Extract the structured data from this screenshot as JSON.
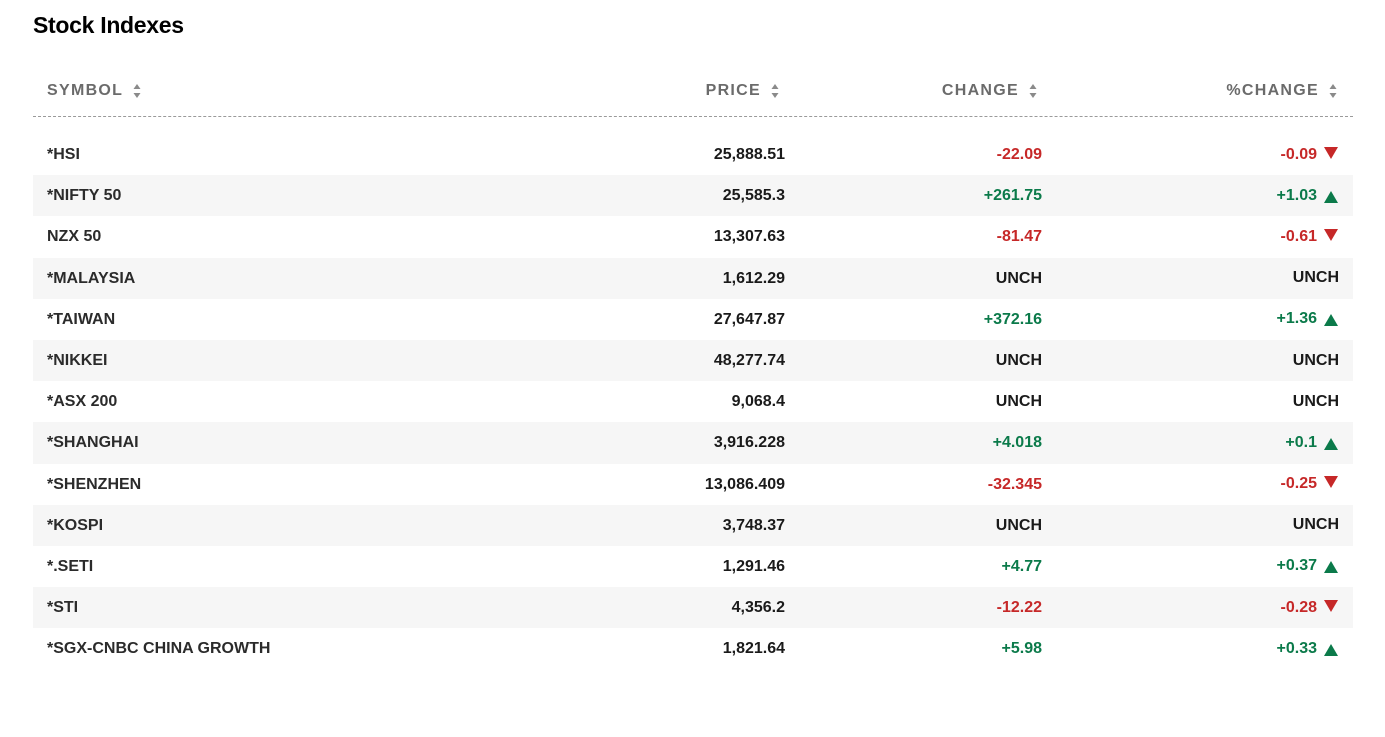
{
  "page": {
    "title": "Stock Indexes"
  },
  "colors": {
    "negative": "#c62828",
    "positive": "#0b7a4a",
    "header_text": "#6b6b6b",
    "alt_row": "#f6f6f6"
  },
  "table": {
    "headers": {
      "symbol": "SYMBOL",
      "price": "PRICE",
      "change": "CHANGE",
      "pct_change": "%CHANGE"
    },
    "rows": [
      {
        "symbol": "*HSI",
        "price": "25,888.51",
        "change": "-22.09",
        "pct": "-0.09",
        "direction": "down"
      },
      {
        "symbol": "*NIFTY 50",
        "price": "25,585.3",
        "change": "+261.75",
        "pct": "+1.03",
        "direction": "up"
      },
      {
        "symbol": "NZX 50",
        "price": "13,307.63",
        "change": "-81.47",
        "pct": "-0.61",
        "direction": "down"
      },
      {
        "symbol": "*MALAYSIA",
        "price": "1,612.29",
        "change": "UNCH",
        "pct": "UNCH",
        "direction": "none"
      },
      {
        "symbol": "*TAIWAN",
        "price": "27,647.87",
        "change": "+372.16",
        "pct": "+1.36",
        "direction": "up"
      },
      {
        "symbol": "*NIKKEI",
        "price": "48,277.74",
        "change": "UNCH",
        "pct": "UNCH",
        "direction": "none"
      },
      {
        "symbol": "*ASX 200",
        "price": "9,068.4",
        "change": "UNCH",
        "pct": "UNCH",
        "direction": "none"
      },
      {
        "symbol": "*SHANGHAI",
        "price": "3,916.228",
        "change": "+4.018",
        "pct": "+0.1",
        "direction": "up"
      },
      {
        "symbol": "*SHENZHEN",
        "price": "13,086.409",
        "change": "-32.345",
        "pct": "-0.25",
        "direction": "down"
      },
      {
        "symbol": "*KOSPI",
        "price": "3,748.37",
        "change": "UNCH",
        "pct": "UNCH",
        "direction": "none"
      },
      {
        "symbol": "*.SETI",
        "price": "1,291.46",
        "change": "+4.77",
        "pct": "+0.37",
        "direction": "up"
      },
      {
        "symbol": "*STI",
        "price": "4,356.2",
        "change": "-12.22",
        "pct": "-0.28",
        "direction": "down"
      },
      {
        "symbol": "*SGX-CNBC CHINA GROWTH",
        "price": "1,821.64",
        "change": "+5.98",
        "pct": "+0.33",
        "direction": "up"
      }
    ]
  }
}
